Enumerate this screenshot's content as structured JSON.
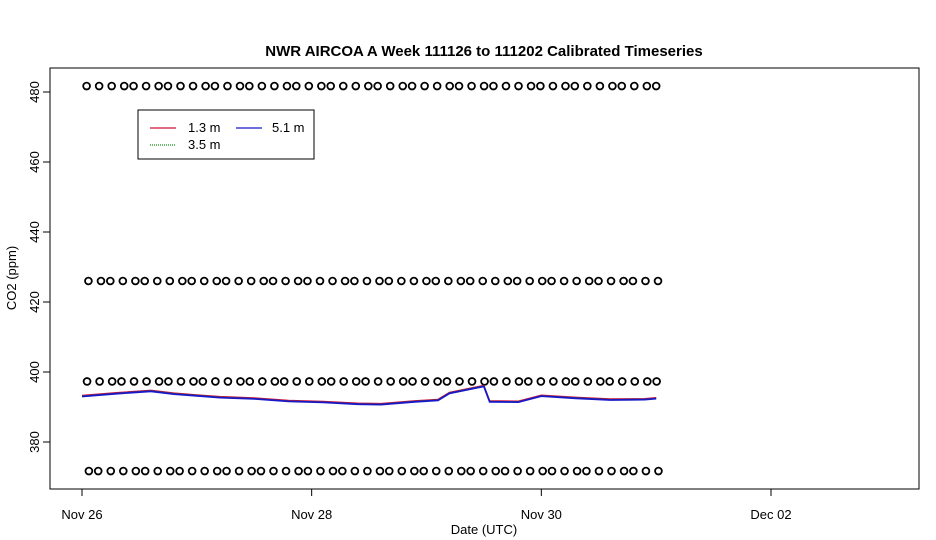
{
  "chart_data": {
    "type": "scatter",
    "title": "NWR AIRCOA A  Week 111126 to 111202  Calibrated Timeseries",
    "xlabel": "Date (UTC)",
    "ylabel": "CO2 (ppm)",
    "xlim": [
      0,
      7.3
    ],
    "ylim": [
      367,
      486
    ],
    "x_ticks": [
      {
        "value": 0,
        "label": "Nov 26"
      },
      {
        "value": 2,
        "label": "Nov 28"
      },
      {
        "value": 4,
        "label": "Nov 30"
      },
      {
        "value": 6,
        "label": "Dec 02"
      }
    ],
    "y_ticks": [
      380,
      400,
      420,
      440,
      460,
      480
    ],
    "grid": false,
    "legend_position": "top-left",
    "series": [
      {
        "name": "1.3 m",
        "color": "#d0103a",
        "type": "line",
        "x": [
          0.0,
          0.3,
          0.6,
          0.8,
          1.0,
          1.2,
          1.5,
          1.8,
          2.1,
          2.4,
          2.6,
          2.9,
          3.1,
          3.2,
          3.5,
          3.55,
          3.8,
          4.0,
          4.3,
          4.6,
          4.9,
          5.0
        ],
        "y": [
          393.3,
          394.1,
          394.8,
          394.0,
          393.5,
          393.0,
          392.6,
          391.9,
          391.6,
          391.1,
          391.0,
          391.8,
          392.2,
          394.2,
          396.2,
          391.8,
          391.7,
          393.4,
          392.8,
          392.3,
          392.4,
          392.7
        ]
      },
      {
        "name": "3.5 m",
        "color": "#118a11",
        "type": "line",
        "x": [
          0.0,
          0.3,
          0.6,
          0.8,
          1.0,
          1.2,
          1.5,
          1.8,
          2.1,
          2.4,
          2.6,
          2.9,
          3.1,
          3.2,
          3.5,
          3.55,
          3.8,
          4.0,
          4.3,
          4.6,
          4.9,
          5.0
        ],
        "y": [
          393.1,
          393.9,
          394.6,
          393.8,
          393.3,
          392.8,
          392.4,
          391.7,
          391.4,
          390.9,
          390.8,
          391.6,
          392.0,
          394.0,
          396.0,
          391.6,
          391.5,
          393.2,
          392.6,
          392.1,
          392.2,
          392.5
        ]
      },
      {
        "name": "5.1 m",
        "color": "#1818c8",
        "type": "line",
        "x": [
          0.0,
          0.3,
          0.6,
          0.8,
          1.0,
          1.2,
          1.5,
          1.8,
          2.1,
          2.4,
          2.6,
          2.9,
          3.1,
          3.2,
          3.5,
          3.55,
          3.8,
          4.0,
          4.3,
          4.6,
          4.9,
          5.0
        ],
        "y": [
          393.0,
          393.8,
          394.5,
          393.7,
          393.2,
          392.7,
          392.3,
          391.6,
          391.3,
          390.8,
          390.7,
          391.5,
          391.9,
          393.9,
          395.9,
          391.5,
          391.4,
          393.1,
          392.5,
          392.0,
          392.1,
          392.4
        ]
      },
      {
        "name": "",
        "type": "points",
        "marker": "circle",
        "levels": [
          481.7,
          426.0,
          397.3,
          371.7
        ],
        "x_start": 0.04,
        "x_end": 5.0,
        "count_per_level": 50
      }
    ]
  }
}
